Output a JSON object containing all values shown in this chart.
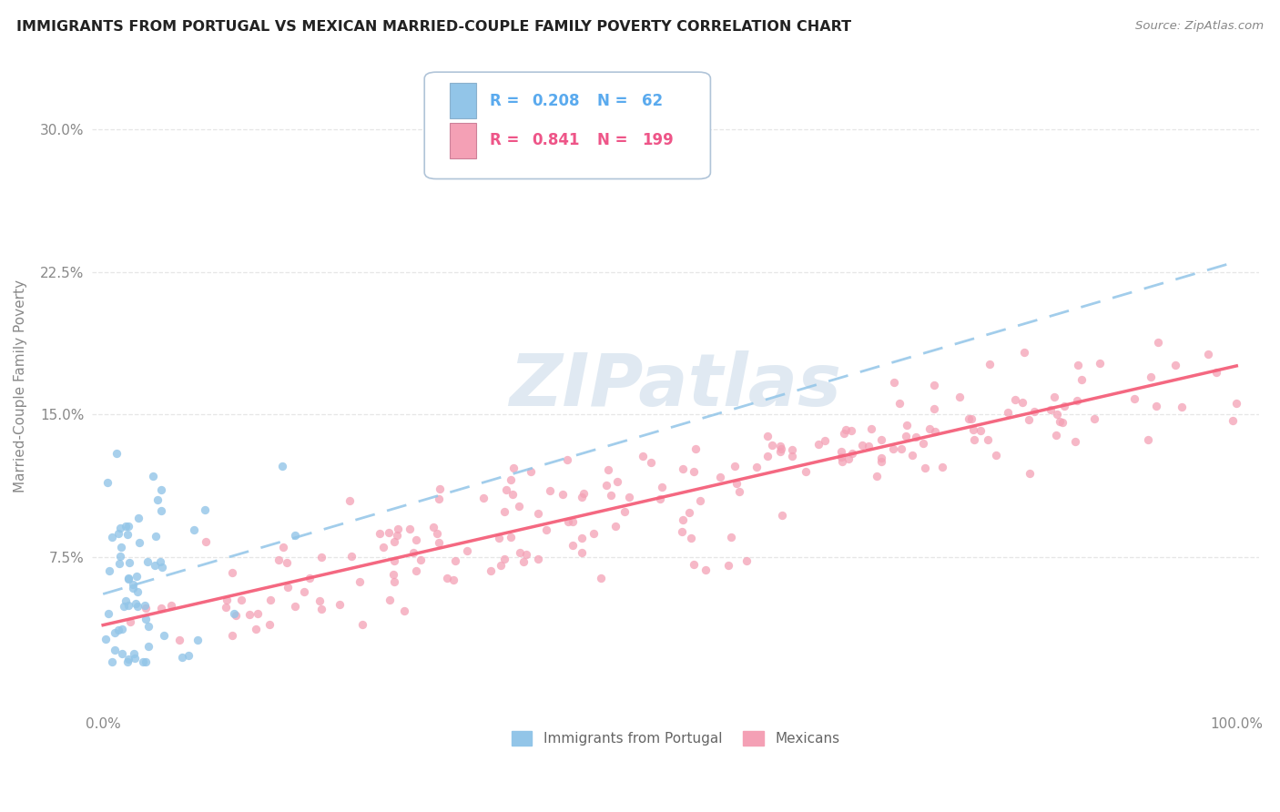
{
  "title": "IMMIGRANTS FROM PORTUGAL VS MEXICAN MARRIED-COUPLE FAMILY POVERTY CORRELATION CHART",
  "source": "Source: ZipAtlas.com",
  "ylabel": "Married-Couple Family Poverty",
  "xlim": [
    -0.01,
    1.02
  ],
  "ylim": [
    -0.005,
    0.335
  ],
  "xtick_positions": [
    0.0,
    1.0
  ],
  "xticklabels": [
    "0.0%",
    "100.0%"
  ],
  "ytick_positions": [
    0.075,
    0.15,
    0.225,
    0.3
  ],
  "yticklabels": [
    "7.5%",
    "15.0%",
    "22.5%",
    "30.0%"
  ],
  "portugal_R": 0.208,
  "portugal_N": 62,
  "mexican_R": 0.841,
  "mexican_N": 199,
  "blue_scatter_color": "#92c5e8",
  "pink_scatter_color": "#f4a0b5",
  "blue_line_color": "#92c5e8",
  "pink_line_color": "#f4607a",
  "watermark_text": "ZIPatlas",
  "watermark_color": "#c8d8e8",
  "legend_label_1": "Immigrants from Portugal",
  "legend_label_2": "Mexicans",
  "background_color": "#ffffff",
  "grid_color": "#e0e0e0",
  "title_color": "#222222",
  "axis_color": "#888888",
  "legend_R_color_blue": "#5aaaee",
  "legend_R_color_pink": "#ee5588",
  "legend_N_color_blue": "#5aaaee",
  "legend_N_color_pink": "#ee5588"
}
